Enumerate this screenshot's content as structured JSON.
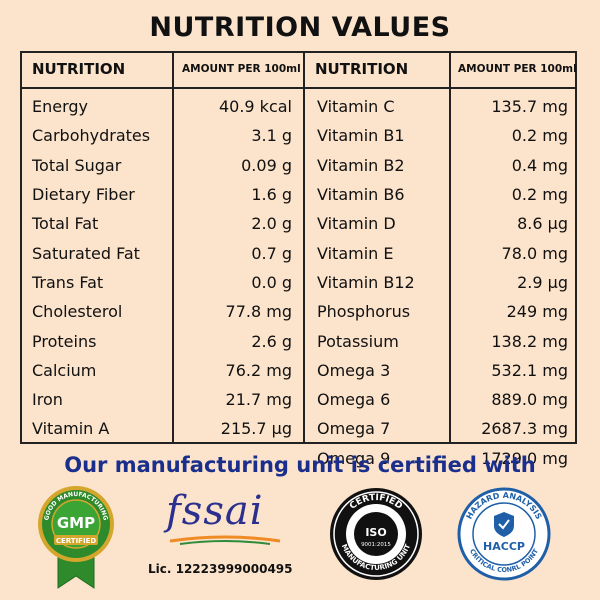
{
  "title": "NUTRITION VALUES",
  "table": {
    "headers": {
      "left_name": "NUTRITION",
      "left_amount": "AMOUNT PER 100ml",
      "right_name": "NUTRITION",
      "right_amount": "AMOUNT PER 100ml"
    },
    "left_rows": [
      {
        "name": "Energy",
        "value": "40.9 kcal"
      },
      {
        "name": "Carbohydrates",
        "value": "3.1 g"
      },
      {
        "name": "Total Sugar",
        "value": "0.09 g"
      },
      {
        "name": "Dietary Fiber",
        "value": "1.6 g"
      },
      {
        "name": "Total Fat",
        "value": "2.0 g"
      },
      {
        "name": "Saturated Fat",
        "value": "0.7 g"
      },
      {
        "name": "Trans Fat",
        "value": "0.0 g"
      },
      {
        "name": "Cholesterol",
        "value": "77.8 mg"
      },
      {
        "name": "Proteins",
        "value": "2.6 g"
      },
      {
        "name": "Calcium",
        "value": "76.2 mg"
      },
      {
        "name": "Iron",
        "value": "21.7 mg"
      },
      {
        "name": "Vitamin A",
        "value": "215.7 µg"
      }
    ],
    "right_rows": [
      {
        "name": "Vitamin C",
        "value": "135.7 mg"
      },
      {
        "name": "Vitamin B1",
        "value": "0.2 mg"
      },
      {
        "name": "Vitamin B2",
        "value": "0.4 mg"
      },
      {
        "name": "Vitamin B6",
        "value": "0.2 mg"
      },
      {
        "name": "Vitamin D",
        "value": "8.6 µg"
      },
      {
        "name": "Vitamin E",
        "value": "78.0 mg"
      },
      {
        "name": "Vitamin B12",
        "value": "2.9 µg"
      },
      {
        "name": "Phosphorus",
        "value": "249 mg"
      },
      {
        "name": "Potassium",
        "value": "138.2 mg"
      },
      {
        "name": "Omega 3",
        "value": "532.1 mg"
      },
      {
        "name": "Omega 6",
        "value": "889.0 mg"
      },
      {
        "name": "Omega 7",
        "value": "2687.3 mg"
      },
      {
        "name": "Omega 9",
        "value": "1729.0 mg"
      }
    ]
  },
  "certifications": {
    "heading": "Our manufacturing unit is certified with",
    "gmp": {
      "ring_text": "GOOD MANUFACTURING",
      "center": "GMP",
      "ribbon": "CERTIFIED",
      "icon": "gmp-badge-icon"
    },
    "fssai": {
      "logo_text": "fssai",
      "license": "Lic. 12223999000495",
      "icon": "fssai-logo-icon"
    },
    "iso": {
      "top_text": "CERTIFIED",
      "center": "ISO",
      "sub": "9001:2015",
      "bottom_text": "MANUFACTURING UNIT",
      "icon": "iso-badge-icon"
    },
    "haccp": {
      "top_text": "HAZARD ANALYSIS",
      "center": "HACCP",
      "bottom_text": "CRITICAL CONRL POINT",
      "icon": "haccp-badge-icon"
    }
  },
  "colors": {
    "background": "#fbe3cc",
    "heading_blue": "#1a2e8c",
    "gmp_green": "#2f8a2b",
    "gmp_gold": "#d4a72c",
    "haccp_blue": "#1f5fa8"
  }
}
